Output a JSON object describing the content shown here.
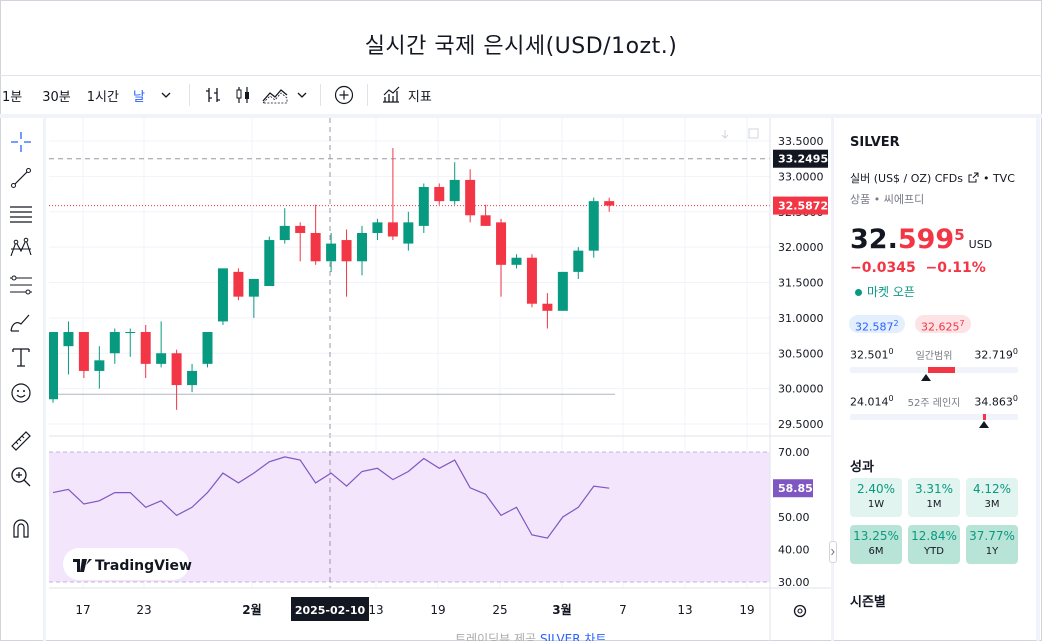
{
  "page": {
    "title": "실시간 국제 은시세(USD/1ozt.)"
  },
  "toolbar": {
    "intervals": [
      "1분",
      "30분",
      "1시간",
      "날"
    ],
    "active_interval": "날",
    "indicators_label": "지표"
  },
  "colors": {
    "up": "#089981",
    "down": "#f23645",
    "rsi_line": "#7e57c2",
    "rsi_band": "#f3e5fb",
    "accent": "#2962ff"
  },
  "chart_data": [
    {
      "type": "candlestick",
      "title": "",
      "symbol": "SILVER",
      "x_tick_labels": [
        "17",
        "23",
        "2월",
        "13",
        "19",
        "25",
        "3월",
        "7",
        "13",
        "19"
      ],
      "crosshair_date": "2025-02-10",
      "ylim": [
        29.4,
        33.7
      ],
      "y_ticks": [
        29.5,
        30.0,
        30.5,
        31.0,
        31.5,
        32.0,
        32.5,
        33.0,
        33.5
      ],
      "y_tick_labels": [
        "29.5000",
        "30.0000",
        "30.5000",
        "31.0000",
        "31.5000",
        "32.0000",
        "32.5000",
        "33.0000",
        "33.5000"
      ],
      "crosshair_price_label": "33.2495",
      "crosshair_price": 33.2495,
      "last_price_label": "32.5872",
      "last_price": 32.5872,
      "reference_line": 29.92,
      "candles": [
        {
          "o": 29.85,
          "h": 30.8,
          "l": 29.8,
          "c": 30.8
        },
        {
          "o": 30.6,
          "h": 30.95,
          "l": 30.2,
          "c": 30.8
        },
        {
          "o": 30.8,
          "h": 30.8,
          "l": 30.15,
          "c": 30.25
        },
        {
          "o": 30.25,
          "h": 30.6,
          "l": 30.0,
          "c": 30.4
        },
        {
          "o": 30.5,
          "h": 30.85,
          "l": 30.35,
          "c": 30.8
        },
        {
          "o": 30.8,
          "h": 30.85,
          "l": 30.45,
          "c": 30.8
        },
        {
          "o": 30.8,
          "h": 30.9,
          "l": 30.15,
          "c": 30.35
        },
        {
          "o": 30.35,
          "h": 30.95,
          "l": 30.3,
          "c": 30.5
        },
        {
          "o": 30.5,
          "h": 30.55,
          "l": 29.7,
          "c": 30.05
        },
        {
          "o": 30.05,
          "h": 30.35,
          "l": 29.95,
          "c": 30.25
        },
        {
          "o": 30.35,
          "h": 30.8,
          "l": 30.3,
          "c": 30.8
        },
        {
          "o": 30.95,
          "h": 31.7,
          "l": 30.9,
          "c": 31.7
        },
        {
          "o": 31.65,
          "h": 31.7,
          "l": 31.25,
          "c": 31.3
        },
        {
          "o": 31.3,
          "h": 31.55,
          "l": 31.0,
          "c": 31.55
        },
        {
          "o": 31.45,
          "h": 32.15,
          "l": 31.45,
          "c": 32.1
        },
        {
          "o": 32.1,
          "h": 32.55,
          "l": 32.05,
          "c": 32.3
        },
        {
          "o": 32.3,
          "h": 32.35,
          "l": 31.8,
          "c": 32.2
        },
        {
          "o": 32.2,
          "h": 32.6,
          "l": 31.75,
          "c": 31.8
        },
        {
          "o": 31.8,
          "h": 32.2,
          "l": 31.65,
          "c": 32.05
        },
        {
          "o": 32.1,
          "h": 32.25,
          "l": 31.3,
          "c": 31.8
        },
        {
          "o": 31.8,
          "h": 32.3,
          "l": 31.6,
          "c": 32.2
        },
        {
          "o": 32.2,
          "h": 32.4,
          "l": 32.1,
          "c": 32.35
        },
        {
          "o": 32.35,
          "h": 33.4,
          "l": 32.1,
          "c": 32.15
        },
        {
          "o": 32.05,
          "h": 32.5,
          "l": 31.95,
          "c": 32.35
        },
        {
          "o": 32.3,
          "h": 32.9,
          "l": 32.2,
          "c": 32.85
        },
        {
          "o": 32.85,
          "h": 32.9,
          "l": 32.6,
          "c": 32.65
        },
        {
          "o": 32.65,
          "h": 33.2,
          "l": 32.6,
          "c": 32.95
        },
        {
          "o": 32.95,
          "h": 33.1,
          "l": 32.35,
          "c": 32.45
        },
        {
          "o": 32.45,
          "h": 32.6,
          "l": 32.3,
          "c": 32.3
        },
        {
          "o": 32.35,
          "h": 32.4,
          "l": 31.3,
          "c": 31.75
        },
        {
          "o": 31.75,
          "h": 31.9,
          "l": 31.7,
          "c": 31.85
        },
        {
          "o": 31.85,
          "h": 31.9,
          "l": 31.15,
          "c": 31.2
        },
        {
          "o": 31.2,
          "h": 31.35,
          "l": 30.85,
          "c": 31.1
        },
        {
          "o": 31.1,
          "h": 31.65,
          "l": 31.1,
          "c": 31.65
        },
        {
          "o": 31.65,
          "h": 32.0,
          "l": 31.55,
          "c": 31.95
        },
        {
          "o": 31.95,
          "h": 32.7,
          "l": 31.85,
          "c": 32.65
        },
        {
          "o": 32.65,
          "h": 32.7,
          "l": 32.5,
          "c": 32.5875
        }
      ]
    },
    {
      "type": "line",
      "title": "",
      "indicator": "RSI",
      "ylim": [
        30,
        70
      ],
      "y_tick_labels": [
        "70.00",
        "60.00",
        "50.00",
        "40.00",
        "30.00"
      ],
      "last_value_label": "58.85",
      "values": [
        57.5,
        58.5,
        54,
        55,
        57.5,
        57.5,
        53,
        55,
        50.5,
        53,
        57.5,
        63.5,
        60.5,
        63.5,
        67,
        68.5,
        67.5,
        60.5,
        63.5,
        59.5,
        64,
        65,
        61.5,
        64,
        68,
        65,
        67.5,
        59,
        57,
        50.5,
        53,
        44.5,
        43.5,
        50,
        53,
        59.5,
        58.85
      ]
    }
  ],
  "chart_badge": {
    "brand": "TradingView"
  },
  "panel": {
    "symbol": "SILVER",
    "description": "실버 (US$ / OZ) CFDs",
    "exchange": "TVC",
    "type_line": "상품 • 씨에프디",
    "price_main": "32.",
    "price_red": "599",
    "price_sup": "5",
    "currency": "USD",
    "change": "−0.0345",
    "change_pct": "−0.11%",
    "market_status": "마켓 오픈",
    "bid": "32.587",
    "bid_sup": "2",
    "ask": "32.625",
    "ask_sup": "7",
    "day_range": {
      "low": "32.501",
      "low_sup": "0",
      "label": "일간범위",
      "high": "32.719",
      "high_sup": "0",
      "marker": 0.45
    },
    "week52_range": {
      "low": "24.014",
      "low_sup": "0",
      "label": "52주 레인지",
      "high": "34.863",
      "high_sup": "0",
      "marker": 0.8
    },
    "performance_title": "성과",
    "performance": [
      {
        "value": "2.40%",
        "period": "1W"
      },
      {
        "value": "3.31%",
        "period": "1M"
      },
      {
        "value": "4.12%",
        "period": "3M"
      },
      {
        "value": "13.25%",
        "period": "6M"
      },
      {
        "value": "12.84%",
        "period": "YTD"
      },
      {
        "value": "37.77%",
        "period": "1Y"
      }
    ],
    "seasonal_title": "시즌별"
  },
  "footer": {
    "text": "트레이딩뷰 제공",
    "link": "SILVER 차트"
  }
}
